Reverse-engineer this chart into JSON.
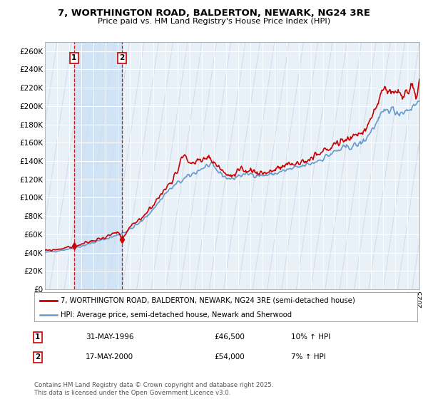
{
  "title": "7, WORTHINGTON ROAD, BALDERTON, NEWARK, NG24 3RE",
  "subtitle": "Price paid vs. HM Land Registry's House Price Index (HPI)",
  "legend_line1": "7, WORTHINGTON ROAD, BALDERTON, NEWARK, NG24 3RE (semi-detached house)",
  "legend_line2": "HPI: Average price, semi-detached house, Newark and Sherwood",
  "footnote": "Contains HM Land Registry data © Crown copyright and database right 2025.\nThis data is licensed under the Open Government Licence v3.0.",
  "transaction1_date": "31-MAY-1996",
  "transaction1_price": "£46,500",
  "transaction1_hpi": "10% ↑ HPI",
  "transaction2_date": "17-MAY-2000",
  "transaction2_price": "£54,000",
  "transaction2_hpi": "7% ↑ HPI",
  "ylim": [
    0,
    270000
  ],
  "yticks": [
    0,
    20000,
    40000,
    60000,
    80000,
    100000,
    120000,
    140000,
    160000,
    180000,
    200000,
    220000,
    240000,
    260000
  ],
  "red_color": "#cc0000",
  "blue_color": "#6699cc",
  "blue_fill_color": "#ddeeff",
  "highlight_color": "#ddeeff",
  "plot_bg_color": "#e8f0f8",
  "grid_color": "#ffffff",
  "hatch_color": "#d0d8e8",
  "xmin": 1994,
  "xmax": 2025,
  "trans1_x": 1996.41,
  "trans2_x": 2000.38
}
